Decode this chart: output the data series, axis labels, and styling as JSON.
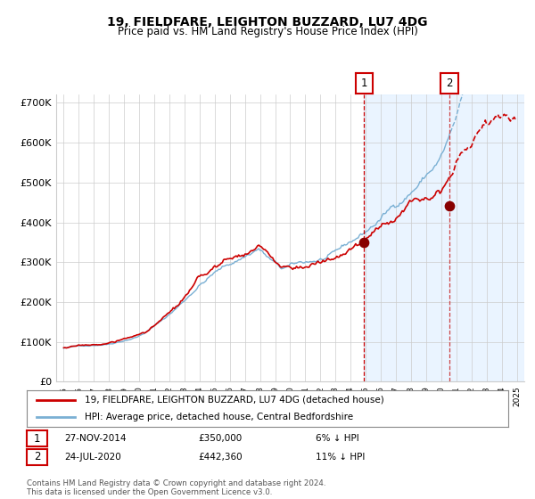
{
  "title": "19, FIELDFARE, LEIGHTON BUZZARD, LU7 4DG",
  "subtitle": "Price paid vs. HM Land Registry's House Price Index (HPI)",
  "legend_line1": "19, FIELDFARE, LEIGHTON BUZZARD, LU7 4DG (detached house)",
  "legend_line2": "HPI: Average price, detached house, Central Bedfordshire",
  "transaction1_date": "27-NOV-2014",
  "transaction1_price": 350000,
  "transaction1_label": "6% ↓ HPI",
  "transaction2_date": "24-JUL-2020",
  "transaction2_price": 442360,
  "transaction2_label": "11% ↓ HPI",
  "footnote": "Contains HM Land Registry data © Crown copyright and database right 2024.\nThis data is licensed under the Open Government Licence v3.0.",
  "red_color": "#cc0000",
  "blue_color": "#7ab0d4",
  "bg_shade_color": "#ddeeff",
  "ylim": [
    0,
    720000
  ],
  "yticks": [
    0,
    100000,
    200000,
    300000,
    400000,
    500000,
    600000,
    700000
  ],
  "ytick_labels": [
    "£0",
    "£100K",
    "£200K",
    "£300K",
    "£400K",
    "£500K",
    "£600K",
    "£700K"
  ],
  "start_year": 1995,
  "end_year": 2025,
  "transaction1_year": 2014.9,
  "transaction2_year": 2020.55,
  "xlim_left": 1994.5,
  "xlim_right": 2025.5
}
